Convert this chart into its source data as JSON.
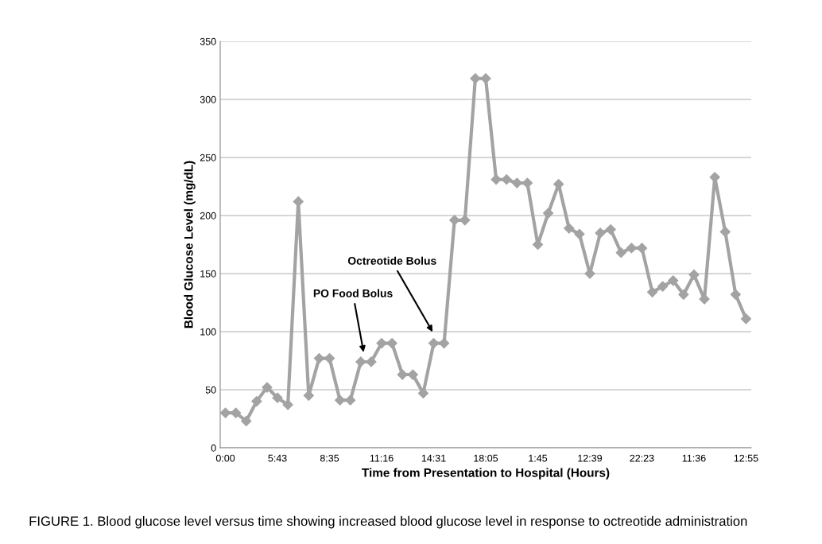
{
  "chart_data": {
    "type": "line",
    "xlabel": "Time from Presentation to Hospital (Hours)",
    "ylabel": "Blood Glucose Level (mg/dL)",
    "categories": [
      "0:00",
      null,
      null,
      null,
      null,
      "5:43",
      null,
      null,
      null,
      null,
      "8:35",
      null,
      null,
      null,
      null,
      "11:16",
      null,
      null,
      null,
      null,
      "14:31",
      null,
      null,
      null,
      null,
      "18:05",
      null,
      null,
      null,
      null,
      "1:45",
      null,
      null,
      null,
      null,
      "12:39",
      null,
      null,
      null,
      null,
      "22:23",
      null,
      null,
      null,
      null,
      "11:36",
      null,
      null,
      null,
      null,
      "12:55"
    ],
    "series": [
      {
        "color": "#a3a3a3",
        "values": [
          30,
          30,
          23,
          40,
          52,
          43,
          37,
          212,
          45,
          77,
          77,
          41,
          41,
          74,
          74,
          90,
          90,
          63,
          63,
          47,
          90,
          90,
          196,
          196,
          318,
          318,
          231,
          231,
          228,
          228,
          175,
          202,
          227,
          189,
          184,
          150,
          185,
          188,
          168,
          172,
          172,
          134,
          139,
          144,
          132,
          149,
          128,
          233,
          186,
          132,
          111
        ]
      }
    ],
    "ylim": [
      0,
      350
    ],
    "yticks": [
      0,
      50,
      100,
      150,
      200,
      250,
      300,
      350
    ],
    "grid": "y",
    "marker": "diamond",
    "line_style": "solid",
    "legend": false,
    "annotations": [
      "PO Food Bolus",
      "Octreotide Bolus",
      "FIGURE 1. Blood glucose level versus time showing increased blood glucose level in response to octreotide administration"
    ]
  }
}
